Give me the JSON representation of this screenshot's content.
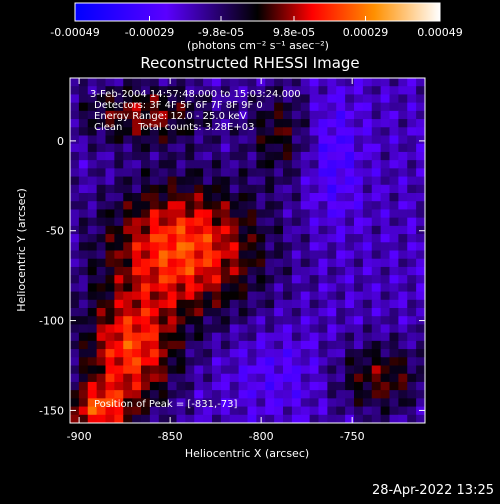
{
  "chart_data": {
    "type": "heatmap",
    "title": "Reconstructed RHESSI Image",
    "xlabel": "Heliocentric X (arcsec)",
    "ylabel": "Heliocentric Y (arcsec)",
    "xlim": [
      -905,
      -710
    ],
    "ylim": [
      -157,
      35
    ],
    "xticks": [
      -900,
      -850,
      -800,
      -750
    ],
    "xtick_labels": [
      "-900",
      "-850",
      "-800",
      "-750"
    ],
    "yticks": [
      0,
      -50,
      -100,
      -150
    ],
    "ytick_labels": [
      "0",
      "-50",
      "-100",
      "-150"
    ],
    "colorbar": {
      "range": [
        -0.00049,
        0.00049
      ],
      "ticks": [
        -0.00049,
        -0.00029,
        -9.8e-05,
        9.8e-05,
        0.00029,
        0.00049
      ],
      "tick_labels": [
        "-0.00049",
        "-0.00029",
        "-9.8e-05",
        "9.8e-05",
        "0.00029",
        "0.00049"
      ],
      "unit_label": "(photons cm⁻² s⁻¹ asec⁻²)",
      "colors": [
        "#0000ff",
        "#5a00ff",
        "#000000",
        "#ff0000",
        "#ff9000",
        "#ffffff"
      ]
    },
    "annotations": [
      "3-Feb-2004 14:57:48.000 to 15:03:24.000",
      "Detectors: 3F 4F 5F 6F 7F 8F 9F 0",
      "Energy Range: 12.0 - 25.0 keV",
      "Clean     Total counts: 3.28E+03"
    ],
    "peak_label": "Position of Peak = [-831,-73]",
    "peak": [
      -831,
      -73
    ],
    "sources": [
      {
        "x": -843,
        "y": -60,
        "sx": 30,
        "sy": 26,
        "amp": 0.0004
      },
      {
        "x": -872,
        "y": -118,
        "sx": 18,
        "sy": 22,
        "amp": 0.00036
      },
      {
        "x": -890,
        "y": -150,
        "sx": 12,
        "sy": 10,
        "amp": 0.00033
      },
      {
        "x": -865,
        "y": 15,
        "sx": 25,
        "sy": 12,
        "amp": 0.00024
      },
      {
        "x": -790,
        "y": 5,
        "sx": 12,
        "sy": 18,
        "amp": 0.00018
      },
      {
        "x": -735,
        "y": -132,
        "sx": 18,
        "sy": 14,
        "amp": 0.00022
      },
      {
        "x": -760,
        "y": -10,
        "sx": 10,
        "sy": 25,
        "amp": -0.00012
      },
      {
        "x": -790,
        "y": -130,
        "sx": 20,
        "sy": 15,
        "amp": -8e-05
      }
    ]
  },
  "footer": {
    "date": "28-Apr-2022 13:25"
  }
}
